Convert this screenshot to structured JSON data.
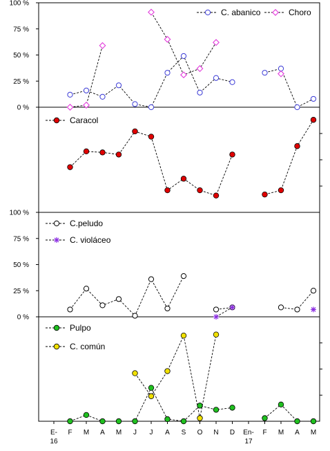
{
  "chart_data": [
    {
      "type": "line",
      "panel": 1,
      "ylim": [
        0,
        100
      ],
      "y_ticks": [
        "0 %",
        "25 %",
        "50 %",
        "75 %",
        "100 %"
      ],
      "series": [
        {
          "name": "C. abanico",
          "color": "#3a3ad6",
          "marker": "circle-open",
          "values": [
            null,
            12,
            16,
            10,
            21,
            3,
            0,
            33,
            49,
            14,
            28,
            24,
            null,
            33,
            37,
            0,
            8
          ]
        },
        {
          "name": "Choro",
          "color": "#e33bdc",
          "marker": "diamond-open",
          "values": [
            null,
            0,
            2,
            59,
            null,
            null,
            91,
            65,
            31,
            37,
            62,
            null,
            null,
            null,
            32,
            null,
            null
          ]
        }
      ],
      "legend_position": "top-right"
    },
    {
      "type": "line",
      "panel": 2,
      "ylim": [
        0,
        100
      ],
      "series": [
        {
          "name": "Caracol",
          "color": "#e00000",
          "marker": "circle-filled",
          "values": [
            null,
            43,
            58,
            57,
            55,
            77,
            72,
            21,
            32,
            21,
            16,
            55,
            null,
            17,
            21,
            63,
            88
          ]
        }
      ],
      "legend_position": "top-left"
    },
    {
      "type": "line",
      "panel": 3,
      "ylim": [
        0,
        100
      ],
      "y_ticks": [
        "0 %",
        "25 %",
        "50 %",
        "75 %",
        "100 %"
      ],
      "series": [
        {
          "name": "C.peludo",
          "color": "#000000",
          "marker": "circle-open",
          "values": [
            null,
            7,
            27,
            11,
            17,
            1,
            36,
            8,
            39,
            null,
            7,
            9,
            null,
            null,
            9,
            7,
            25
          ]
        },
        {
          "name": "C. violáceo",
          "color": "#8a2be2",
          "marker": "star",
          "values": [
            null,
            null,
            null,
            null,
            null,
            null,
            null,
            null,
            null,
            null,
            0,
            9,
            null,
            null,
            null,
            null,
            7
          ]
        }
      ],
      "legend_position": "top-left"
    },
    {
      "type": "line",
      "panel": 4,
      "ylim": [
        0,
        100
      ],
      "series": [
        {
          "name": "Pulpo",
          "color": "#20c020",
          "marker": "circle-filled",
          "values": [
            null,
            0,
            6,
            0,
            0,
            0,
            32,
            2,
            0,
            15,
            11,
            13,
            null,
            3,
            16,
            0,
            0
          ]
        },
        {
          "name": "C. común",
          "color": "#f0e000",
          "marker": "circle-filled",
          "values": [
            null,
            null,
            null,
            null,
            null,
            46,
            24,
            48,
            82,
            3,
            83,
            null,
            null,
            null,
            null,
            null,
            null
          ]
        }
      ],
      "legend_position": "top-left"
    }
  ],
  "x_tick_labels": [
    [
      "E-",
      "16"
    ],
    [
      "F"
    ],
    [
      "M"
    ],
    [
      "A"
    ],
    [
      "M"
    ],
    [
      "J"
    ],
    [
      "J"
    ],
    [
      "A"
    ],
    [
      "S"
    ],
    [
      "O"
    ],
    [
      "N"
    ],
    [
      "D"
    ],
    [
      "En-",
      "17"
    ],
    [
      "F"
    ],
    [
      "M"
    ],
    [
      "A"
    ],
    [
      "M"
    ]
  ]
}
